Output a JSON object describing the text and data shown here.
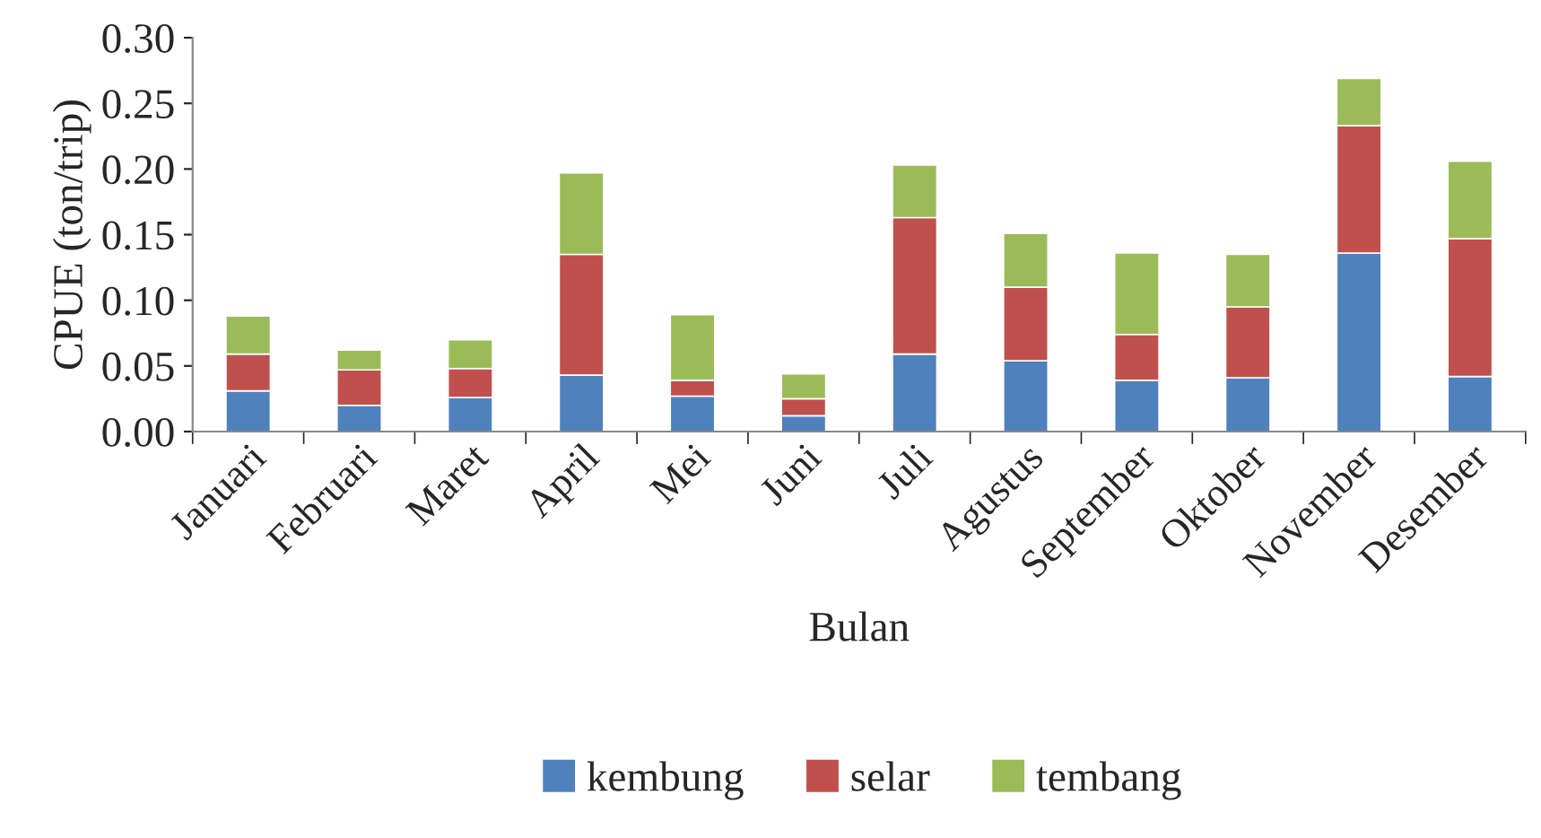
{
  "chart_data": {
    "type": "bar",
    "stacked": true,
    "xlabel": "Bulan",
    "ylabel": "CPUE (ton/trip)",
    "categories": [
      "Januari",
      "Februari",
      "Maret",
      "April",
      "Mei",
      "Juni",
      "Juli",
      "Agustus",
      "September",
      "Oktober",
      "November",
      "Desember"
    ],
    "series": [
      {
        "name": "kembung",
        "color": "#4f81bd",
        "values": [
          0.031,
          0.02,
          0.026,
          0.043,
          0.027,
          0.012,
          0.059,
          0.054,
          0.039,
          0.041,
          0.136,
          0.042
        ]
      },
      {
        "name": "selar",
        "color": "#c0504d",
        "values": [
          0.028,
          0.027,
          0.022,
          0.092,
          0.012,
          0.013,
          0.104,
          0.056,
          0.035,
          0.054,
          0.097,
          0.105
        ]
      },
      {
        "name": "tembang",
        "color": "#9bbb59",
        "values": [
          0.029,
          0.015,
          0.022,
          0.062,
          0.05,
          0.019,
          0.04,
          0.041,
          0.062,
          0.04,
          0.036,
          0.059
        ]
      }
    ],
    "ylim": [
      0,
      0.3
    ],
    "yticks": [
      {
        "value": 0,
        "label": "0.00"
      },
      {
        "value": 0.05,
        "label": "0.05"
      },
      {
        "value": 0.1,
        "label": "0.10"
      },
      {
        "value": 0.15,
        "label": "0.15"
      },
      {
        "value": 0.2,
        "label": "0.20"
      },
      {
        "value": 0.25,
        "label": "0.25"
      },
      {
        "value": 0.3,
        "label": "0.30"
      }
    ],
    "grid": false,
    "legend": "bottom"
  }
}
